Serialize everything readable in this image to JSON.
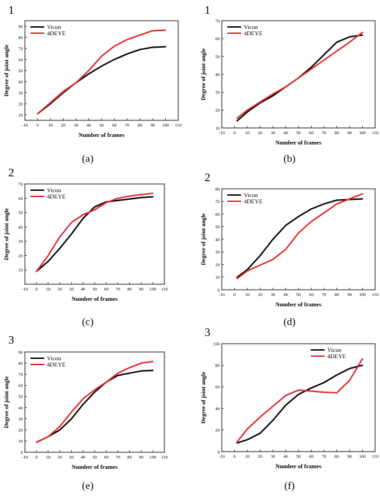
{
  "chart_data": [
    {
      "type": "line",
      "panel_number": "1",
      "caption": "(a)",
      "xlabel": "Number of frames",
      "ylabel": "Degree of joint angle",
      "xlim": [
        -10,
        110
      ],
      "ylim": [
        5,
        95
      ],
      "xticks": [
        -10,
        0,
        10,
        20,
        30,
        40,
        50,
        60,
        70,
        80,
        90,
        100,
        110
      ],
      "yticks": [
        10,
        20,
        30,
        40,
        50,
        60,
        70,
        80,
        90
      ],
      "legend_position": "top-left",
      "grid": false,
      "series": [
        {
          "name": "Vicon",
          "color": "#000000",
          "x": [
            0,
            10,
            20,
            30,
            40,
            50,
            60,
            70,
            80,
            90,
            100
          ],
          "y": [
            11,
            20,
            30,
            39,
            47,
            54,
            60,
            65,
            69,
            71,
            71.5
          ]
        },
        {
          "name": "4DEYE",
          "color": "#e3262a",
          "x": [
            0,
            10,
            20,
            30,
            40,
            50,
            60,
            70,
            80,
            90,
            100
          ],
          "y": [
            11,
            21,
            31,
            39,
            50,
            63,
            72,
            78,
            82,
            86,
            86.5
          ]
        }
      ]
    },
    {
      "type": "line",
      "panel_number": "1",
      "caption": "(b)",
      "xlabel": "Number of frames",
      "ylabel": "Degree of joint angle",
      "xlim": [
        -10,
        110
      ],
      "ylim": [
        10,
        70
      ],
      "xticks": [
        -10,
        0,
        10,
        20,
        30,
        40,
        50,
        60,
        70,
        80,
        90,
        100,
        110
      ],
      "yticks": [
        10,
        20,
        30,
        40,
        50,
        60,
        70
      ],
      "legend_position": "top-left",
      "grid": false,
      "series": [
        {
          "name": "Vicon",
          "color": "#000000",
          "x": [
            2,
            10,
            20,
            30,
            40,
            50,
            60,
            70,
            80,
            90,
            100
          ],
          "y": [
            14,
            19,
            24,
            28,
            33,
            38,
            44,
            51,
            58,
            61,
            62
          ]
        },
        {
          "name": "4DEYE",
          "color": "#e3262a",
          "x": [
            2,
            10,
            20,
            30,
            40,
            50,
            60,
            70,
            80,
            90,
            100
          ],
          "y": [
            15.5,
            20,
            24.5,
            29,
            33,
            38,
            43,
            48,
            53,
            58,
            63.5
          ]
        }
      ]
    },
    {
      "type": "line",
      "panel_number": "2",
      "caption": "(c)",
      "xlabel": "Number of frames",
      "ylabel": "Degree of joint angle",
      "xlim": [
        -10,
        110
      ],
      "ylim": [
        0,
        70
      ],
      "xticks": [
        -10,
        0,
        10,
        20,
        30,
        40,
        50,
        60,
        70,
        80,
        90,
        100,
        110
      ],
      "yticks": [
        10,
        20,
        30,
        40,
        50,
        60,
        70
      ],
      "legend_position": "top-left",
      "grid": false,
      "series": [
        {
          "name": "Vicon",
          "color": "#000000",
          "x": [
            0,
            10,
            20,
            30,
            40,
            50,
            60,
            70,
            80,
            90,
            100
          ],
          "y": [
            9,
            16,
            25,
            35,
            46,
            54,
            57.5,
            58.5,
            59.5,
            60.5,
            61
          ]
        },
        {
          "name": "4DEYE",
          "color": "#e3262a",
          "x": [
            0,
            10,
            20,
            30,
            40,
            50,
            60,
            70,
            80,
            90,
            100
          ],
          "y": [
            9,
            20,
            33,
            43,
            48.5,
            52,
            57,
            60,
            61.5,
            62.5,
            63.5
          ]
        }
      ]
    },
    {
      "type": "line",
      "panel_number": "2",
      "caption": "(d)",
      "xlabel": "Number of frames",
      "ylabel": "Degree of joint angle",
      "xlim": [
        -10,
        110
      ],
      "ylim": [
        0,
        80
      ],
      "xticks": [
        -10,
        0,
        10,
        20,
        30,
        40,
        50,
        60,
        70,
        80,
        90,
        100,
        110
      ],
      "yticks": [
        0,
        10,
        20,
        30,
        40,
        50,
        60,
        70,
        80
      ],
      "legend_position": "top-left",
      "grid": false,
      "series": [
        {
          "name": "Vicon",
          "color": "#000000",
          "x": [
            2,
            10,
            20,
            30,
            40,
            50,
            60,
            70,
            80,
            90,
            100
          ],
          "y": [
            10,
            16,
            27,
            40,
            51,
            58,
            64,
            68,
            71,
            71.5,
            72
          ]
        },
        {
          "name": "4DEYE",
          "color": "#e3262a",
          "x": [
            2,
            10,
            20,
            30,
            40,
            50,
            60,
            70,
            80,
            90,
            100
          ],
          "y": [
            9,
            15,
            19.5,
            24,
            32,
            45,
            54,
            61,
            68,
            72,
            76
          ]
        }
      ]
    },
    {
      "type": "line",
      "panel_number": "3",
      "caption": "(e)",
      "xlabel": "Number of frames",
      "ylabel": "Degree of joint angle",
      "xlim": [
        -10,
        110
      ],
      "ylim": [
        0,
        90
      ],
      "xticks": [
        -10,
        0,
        10,
        20,
        30,
        40,
        50,
        60,
        70,
        80,
        90,
        100,
        110
      ],
      "yticks": [
        0,
        10,
        20,
        30,
        40,
        50,
        60,
        70,
        80,
        90
      ],
      "legend_position": "top-left",
      "grid": false,
      "series": [
        {
          "name": "Vicon",
          "color": "#000000",
          "x": [
            0,
            10,
            20,
            30,
            40,
            50,
            60,
            70,
            80,
            90,
            100
          ],
          "y": [
            9,
            14,
            20,
            30,
            43,
            54,
            63,
            69,
            71,
            73,
            73.5
          ]
        },
        {
          "name": "4DEYE",
          "color": "#e3262a",
          "x": [
            0,
            10,
            20,
            30,
            40,
            50,
            60,
            70,
            80,
            90,
            100
          ],
          "y": [
            9,
            14,
            23,
            36,
            48,
            56,
            63,
            71,
            76,
            80,
            81.5
          ]
        }
      ]
    },
    {
      "type": "line",
      "panel_number": "3",
      "caption": "(f)",
      "xlabel": "Number of frames",
      "ylabel": "Degree of joint angle",
      "xlim": [
        -10,
        110
      ],
      "ylim": [
        0,
        100
      ],
      "xticks": [
        -10,
        0,
        10,
        20,
        30,
        40,
        50,
        60,
        70,
        80,
        90,
        100,
        110
      ],
      "yticks": [
        0,
        20,
        40,
        60,
        80,
        100
      ],
      "legend_position": "top-right",
      "grid": false,
      "series": [
        {
          "name": "Vicon",
          "color": "#000000",
          "x": [
            2,
            10,
            20,
            30,
            40,
            50,
            60,
            70,
            80,
            90,
            100
          ],
          "y": [
            8,
            11,
            17,
            29,
            43,
            53,
            59,
            64,
            71,
            77,
            80
          ]
        },
        {
          "name": "4DEYE",
          "color": "#e3262a",
          "x": [
            2,
            10,
            20,
            30,
            40,
            50,
            60,
            70,
            80,
            90,
            100
          ],
          "y": [
            9,
            21,
            32,
            42,
            52,
            57,
            56,
            55,
            54.5,
            66,
            86
          ]
        }
      ]
    }
  ]
}
